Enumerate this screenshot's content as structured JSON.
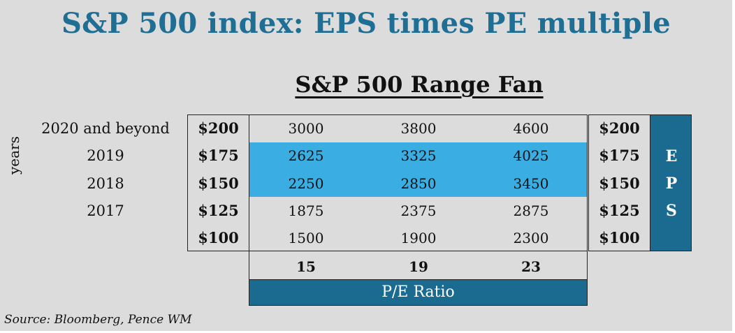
{
  "title": "S&P 500 index: EPS times PE multiple",
  "subtitle": "S&P 500 Range Fan",
  "y_axis_label": "years",
  "x_axis_label": "P/E Ratio",
  "right_axis_label": [
    "E",
    "P",
    "S"
  ],
  "source": "Source: Bloomberg, Pence WM",
  "colors": {
    "title": "#1f6e94",
    "highlight": "#3aaee3",
    "header_fill": "#1a6b8f",
    "background": "#dcdcdc"
  },
  "chart_data": {
    "type": "table",
    "title": "S&P 500 index: EPS times PE multiple",
    "subtitle": "S&P 500 Range Fan",
    "year_labels": [
      "2020 and beyond",
      "2019",
      "2018",
      "2017",
      ""
    ],
    "eps_labels": [
      "$200",
      "$175",
      "$150",
      "$125",
      "$100"
    ],
    "eps_values": [
      200,
      175,
      150,
      125,
      100
    ],
    "pe_labels": [
      "15",
      "19",
      "23"
    ],
    "pe_values": [
      15,
      19,
      23
    ],
    "index_levels": [
      [
        "3000",
        "3800",
        "4600"
      ],
      [
        "2625",
        "3325",
        "4025"
      ],
      [
        "2250",
        "2850",
        "3450"
      ],
      [
        "1875",
        "2375",
        "2875"
      ],
      [
        "1500",
        "1900",
        "2300"
      ]
    ],
    "highlighted_rows": [
      1,
      2
    ],
    "xlabel": "P/E Ratio",
    "ylabel": "years"
  }
}
